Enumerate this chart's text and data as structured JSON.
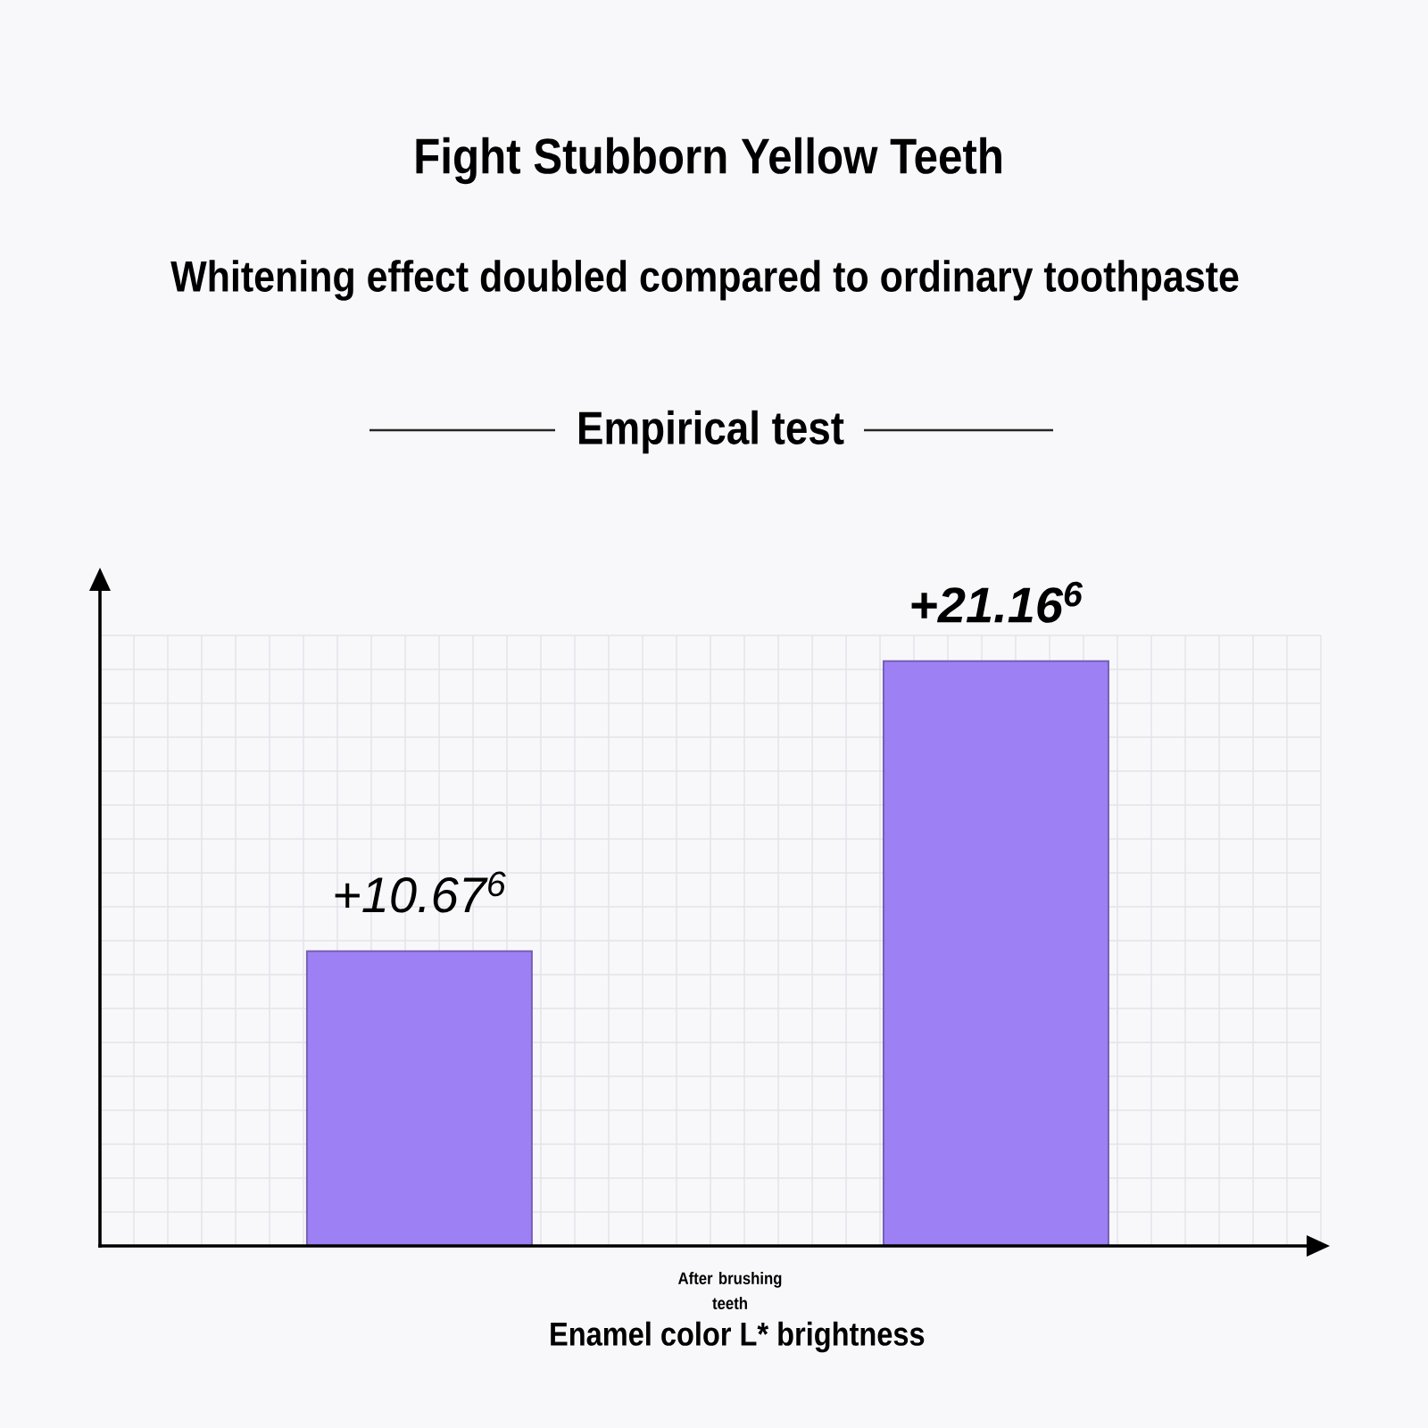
{
  "chart_data": {
    "type": "bar",
    "title": "Fight Stubborn Yellow Teeth",
    "subtitle": "Whitening effect doubled compared to ordinary toothpaste",
    "xlabel": "Enamel color L* brightness",
    "annotations": [
      "Empirical test",
      "After brushing teeth"
    ],
    "categories": [
      null,
      null
    ],
    "values": [
      10.67,
      21.16
    ],
    "value_labels": [
      "+10.67$^{6}$",
      "+21.16$^{6}$"
    ],
    "color": "#9d80f3",
    "grid": true,
    "tick_labels": false
  }
}
